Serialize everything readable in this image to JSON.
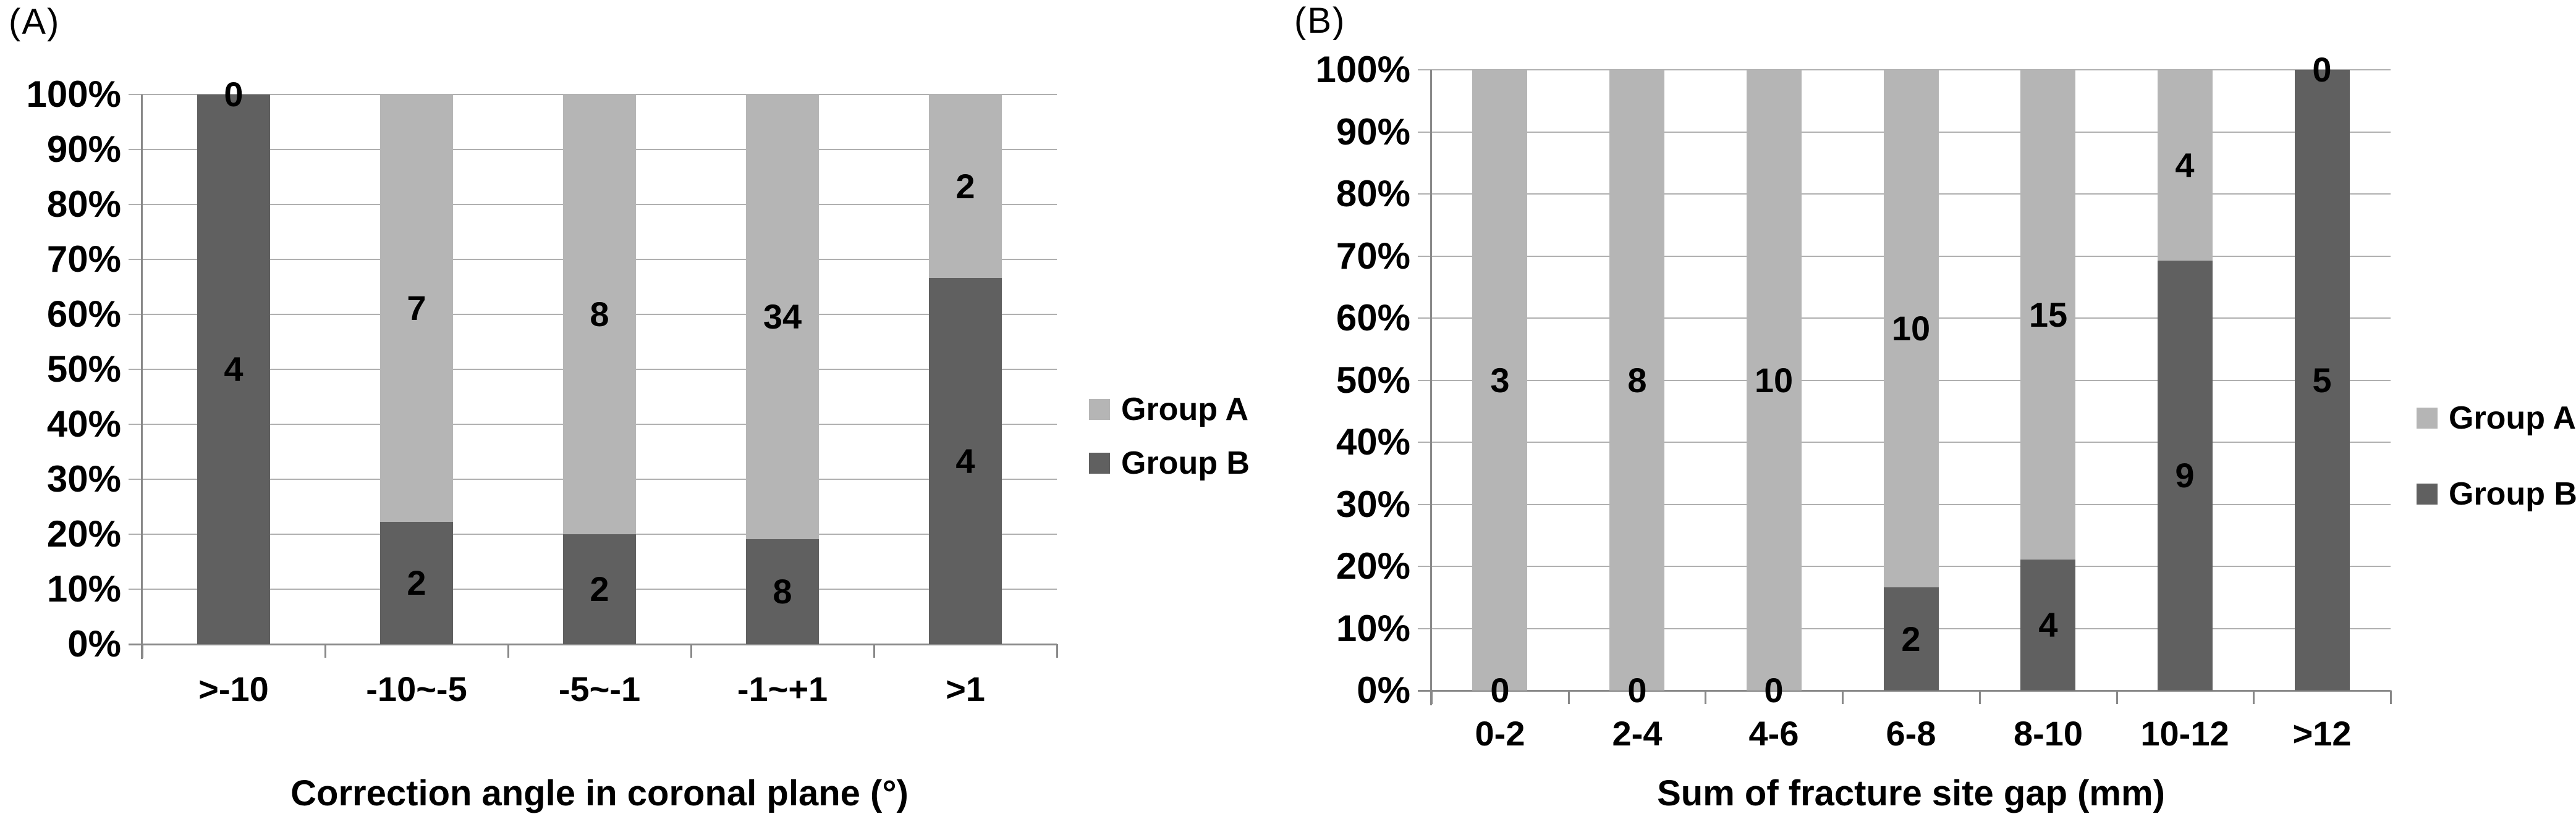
{
  "figure": {
    "background": "#ffffff",
    "panel_count": 2
  },
  "legend": {
    "items": [
      {
        "label": "Group A",
        "color": "#b5b5b5"
      },
      {
        "label": "Group B",
        "color": "#606060"
      }
    ],
    "position": "right"
  },
  "colors": {
    "group_a": "#b5b5b5",
    "group_b": "#606060",
    "gridline": "#b0b0b0",
    "axis": "#898989",
    "text": "#000000",
    "background": "#ffffff"
  },
  "chart_data": [
    {
      "id": "A",
      "panel_label": "(A)",
      "type": "bar",
      "stacked": true,
      "normalized": "100% stacked column",
      "stack_bottom_series": "Group B",
      "title": "",
      "xlabel": "Correction angle in coronal plane (°)",
      "ylabel": "",
      "ylim": [
        0,
        100
      ],
      "grid": true,
      "legend_position": "right",
      "y_ticks": [
        "100%",
        "90%",
        "80%",
        "70%",
        "60%",
        "50%",
        "40%",
        "30%",
        "20%",
        "10%",
        "0%"
      ],
      "categories": [
        ">-10",
        "-10~-5",
        "-5~-1",
        "-1~+1",
        ">1"
      ],
      "series": [
        {
          "name": "Group A",
          "values": [
            0,
            7,
            8,
            34,
            2
          ]
        },
        {
          "name": "Group B",
          "values": [
            4,
            2,
            2,
            8,
            4
          ]
        }
      ]
    },
    {
      "id": "B",
      "panel_label": "(B)",
      "type": "bar",
      "stacked": true,
      "normalized": "100% stacked column",
      "stack_bottom_series": "Group B",
      "title": "",
      "xlabel": "Sum of fracture site gap (mm)",
      "ylabel": "",
      "ylim": [
        0,
        100
      ],
      "grid": true,
      "legend_position": "right",
      "y_ticks": [
        "100%",
        "90%",
        "80%",
        "70%",
        "60%",
        "50%",
        "40%",
        "30%",
        "20%",
        "10%",
        "0%"
      ],
      "categories": [
        "0-2",
        "2-4",
        "4-6",
        "6-8",
        "8-10",
        "10-12",
        ">12"
      ],
      "series": [
        {
          "name": "Group A",
          "values": [
            3,
            8,
            10,
            10,
            15,
            4,
            0
          ]
        },
        {
          "name": "Group B",
          "values": [
            0,
            0,
            0,
            2,
            4,
            9,
            5
          ]
        }
      ]
    }
  ]
}
